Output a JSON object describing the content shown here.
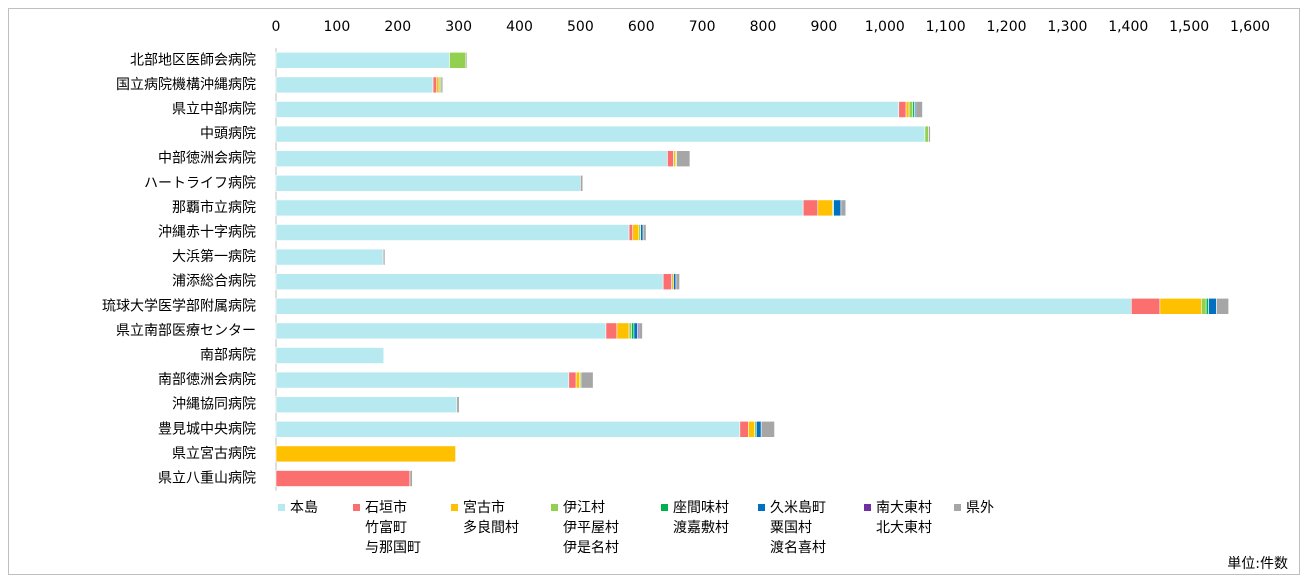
{
  "chart_data": {
    "type": "barh_stacked",
    "note": "単位:件数",
    "categories": [
      "北部地区医師会病院",
      "国立病院機構沖縄病院",
      "県立中部病院",
      "中頭病院",
      "中部徳洲会病院",
      "ハートライフ病院",
      "那覇市立病院",
      "沖縄赤十字病院",
      "大浜第一病院",
      "浦添総合病院",
      "琉球大学医学部附属病院",
      "県立南部医療センター",
      "南部病院",
      "南部徳洲会病院",
      "沖縄協同病院",
      "豊見城中央病院",
      "県立宮古病院",
      "県立八重山病院"
    ],
    "series": [
      {
        "name": [
          "本島"
        ],
        "color": "#b7e9f0",
        "values": [
          285,
          258,
          1023,
          1066,
          643,
          500,
          866,
          580,
          176,
          636,
          1405,
          542,
          177,
          481,
          297,
          762,
          0,
          0
        ]
      },
      {
        "name": [
          "石垣市",
          "竹富町",
          "与那国町"
        ],
        "color": "#fb6f6f",
        "values": [
          0,
          6,
          12,
          0,
          10,
          0,
          24,
          6,
          0,
          14,
          47,
          18,
          0,
          12,
          0,
          14,
          0,
          220
        ]
      },
      {
        "name": [
          "宮古市",
          "多良間村"
        ],
        "color": "#ffc000",
        "values": [
          0,
          4,
          5,
          0,
          3,
          0,
          24,
          10,
          0,
          3,
          68,
          20,
          0,
          6,
          0,
          10,
          295,
          0
        ]
      },
      {
        "name": [
          "伊江村",
          "伊平屋村",
          "伊是名村"
        ],
        "color": "#92d050",
        "values": [
          27,
          3,
          6,
          6,
          2,
          0,
          2,
          3,
          0,
          0,
          8,
          4,
          0,
          2,
          0,
          3,
          0,
          0
        ]
      },
      {
        "name": [
          "座間味村",
          "渡嘉敷村"
        ],
        "color": "#00b050",
        "values": [
          0,
          0,
          3,
          0,
          0,
          0,
          0,
          0,
          0,
          0,
          4,
          4,
          0,
          0,
          0,
          0,
          0,
          0
        ]
      },
      {
        "name": [
          "久米島町",
          "粟国村",
          "渡名喜村"
        ],
        "color": "#0070c0",
        "values": [
          0,
          0,
          2,
          0,
          0,
          0,
          12,
          4,
          0,
          4,
          13,
          6,
          0,
          0,
          0,
          8,
          0,
          0
        ]
      },
      {
        "name": [
          "南大東村",
          "北大東村"
        ],
        "color": "#7030a0",
        "values": [
          0,
          0,
          0,
          0,
          0,
          0,
          0,
          0,
          0,
          0,
          0,
          2,
          0,
          0,
          0,
          0,
          0,
          0
        ]
      },
      {
        "name": [
          "県外"
        ],
        "color": "#a6a6a6",
        "values": [
          2,
          3,
          11,
          3,
          22,
          4,
          8,
          5,
          3,
          6,
          20,
          6,
          0,
          20,
          4,
          22,
          0,
          4
        ]
      }
    ],
    "xlim": [
      0,
      1600
    ],
    "xticks": [
      0,
      100,
      200,
      300,
      400,
      500,
      600,
      700,
      800,
      900,
      {
        "value": 1000,
        "label": "1,000"
      },
      {
        "value": 1100,
        "label": "1,100"
      },
      {
        "value": 1200,
        "label": "1,200"
      },
      {
        "value": 1300,
        "label": "1,300"
      },
      {
        "value": 1400,
        "label": "1,400"
      },
      {
        "value": 1500,
        "label": "1,500"
      },
      {
        "value": 1600,
        "label": "1,600"
      }
    ]
  }
}
